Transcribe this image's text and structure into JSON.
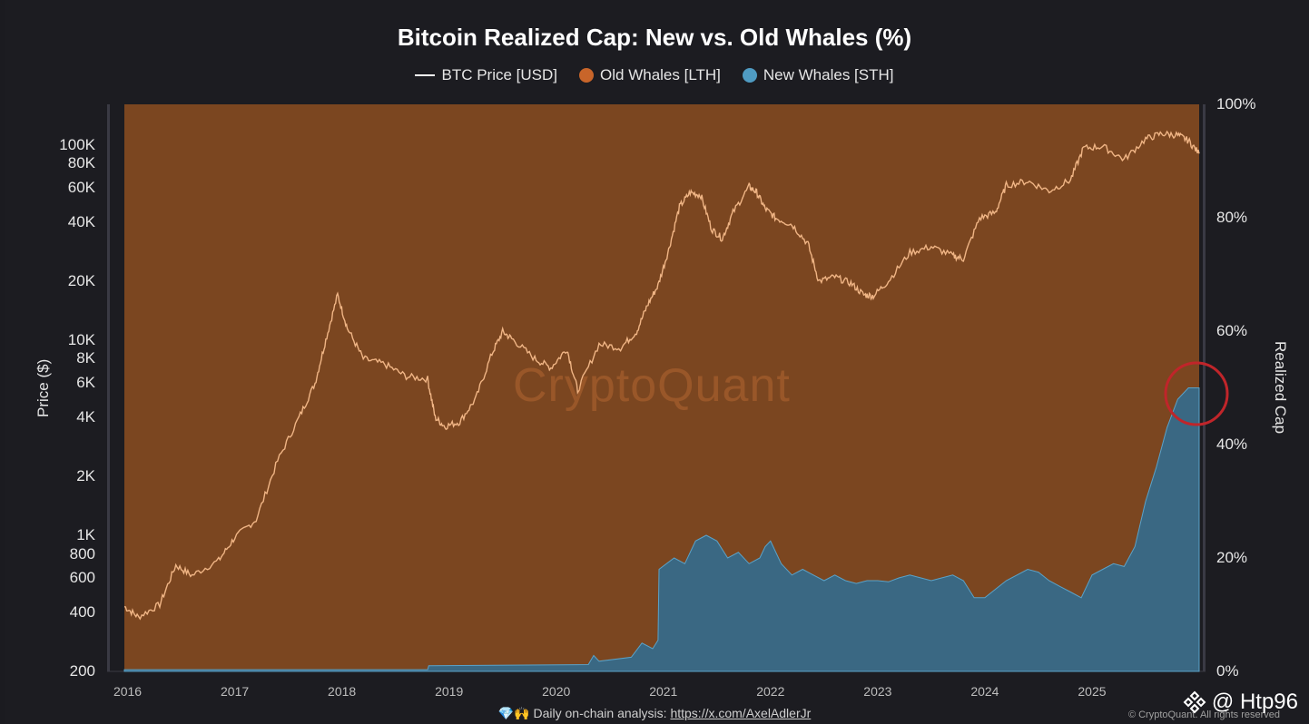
{
  "chart_data": {
    "type": "area",
    "title": "Bitcoin Realized Cap: New vs. Old Whales (%)",
    "legend": [
      {
        "name": "BTC Price [USD]",
        "color": "#ffffff",
        "kind": "line"
      },
      {
        "name": "Old Whales [LTH]",
        "color": "#d2691e",
        "kind": "dot"
      },
      {
        "name": "New Whales [STH]",
        "color": "#4f9bc2",
        "kind": "dot"
      }
    ],
    "ylabel_left": "Price ($)",
    "ylabel_right": "Realized Cap",
    "left_ticks": [
      "100K",
      "80K",
      "60K",
      "40K",
      "20K",
      "10K",
      "8K",
      "6K",
      "4K",
      "2K",
      "1K",
      "800",
      "600",
      "400",
      "200"
    ],
    "left_tick_values": [
      100000,
      80000,
      60000,
      40000,
      20000,
      10000,
      8000,
      6000,
      4000,
      2000,
      1000,
      800,
      600,
      400,
      200
    ],
    "right_ticks": [
      "100%",
      "80%",
      "60%",
      "40%",
      "20%",
      "0%"
    ],
    "right_tick_values": [
      100,
      80,
      60,
      40,
      20,
      0
    ],
    "x_ticks": [
      "2016",
      "2017",
      "2018",
      "2019",
      "2020",
      "2021",
      "2022",
      "2023",
      "2024",
      "2025"
    ],
    "x_tick_values": [
      2016,
      2017,
      2018,
      2019,
      2020,
      2021,
      2022,
      2023,
      2024,
      2025
    ],
    "xlim": [
      2015.97,
      2026.0
    ],
    "ylim_price_log": [
      200,
      200000
    ],
    "ylim_pct": [
      0,
      100
    ],
    "series": [
      {
        "name": "BTC Price [USD]",
        "x": [
          2015.97,
          2016.1,
          2016.3,
          2016.45,
          2016.6,
          2016.85,
          2017.0,
          2017.2,
          2017.4,
          2017.6,
          2017.75,
          2017.85,
          2017.96,
          2018.05,
          2018.2,
          2018.4,
          2018.6,
          2018.8,
          2018.87,
          2018.96,
          2019.1,
          2019.25,
          2019.4,
          2019.5,
          2019.6,
          2019.8,
          2019.95,
          2020.1,
          2020.2,
          2020.4,
          2020.6,
          2020.75,
          2020.85,
          2020.95,
          2021.05,
          2021.15,
          2021.25,
          2021.35,
          2021.45,
          2021.55,
          2021.65,
          2021.8,
          2021.87,
          2021.95,
          2022.05,
          2022.2,
          2022.35,
          2022.45,
          2022.6,
          2022.75,
          2022.87,
          2022.96,
          2023.1,
          2023.3,
          2023.5,
          2023.7,
          2023.8,
          2023.95,
          2024.1,
          2024.2,
          2024.4,
          2024.6,
          2024.8,
          2024.92,
          2025.1,
          2025.3,
          2025.5,
          2025.65,
          2025.8,
          2025.9,
          2026.0
        ],
        "values": [
          430,
          380,
          440,
          700,
          620,
          740,
          970,
          1200,
          2400,
          4000,
          6000,
          10000,
          17000,
          11500,
          8000,
          7500,
          6500,
          6300,
          4000,
          3600,
          3800,
          5000,
          8500,
          11000,
          10000,
          8000,
          7200,
          9000,
          5500,
          9500,
          9100,
          11000,
          15000,
          19000,
          29000,
          48000,
          57000,
          55000,
          37000,
          33000,
          45000,
          61000,
          57000,
          47000,
          42000,
          39000,
          31000,
          20000,
          21000,
          19500,
          17000,
          16800,
          20000,
          28000,
          30000,
          27000,
          26000,
          42000,
          45000,
          62000,
          65000,
          58000,
          66000,
          96000,
          98000,
          84000,
          107000,
          114000,
          112000,
          105000,
          90000
        ]
      },
      {
        "name": "New Whales [STH]",
        "unit": "%",
        "x": [
          2015.97,
          2018.8,
          2018.81,
          2020.3,
          2020.35,
          2020.4,
          2020.7,
          2020.8,
          2020.9,
          2020.95,
          2020.96,
          2021.1,
          2021.2,
          2021.3,
          2021.4,
          2021.5,
          2021.6,
          2021.7,
          2021.8,
          2021.9,
          2021.95,
          2022.0,
          2022.1,
          2022.2,
          2022.3,
          2022.4,
          2022.5,
          2022.6,
          2022.7,
          2022.8,
          2022.9,
          2023.0,
          2023.1,
          2023.2,
          2023.3,
          2023.4,
          2023.5,
          2023.6,
          2023.7,
          2023.8,
          2023.9,
          2024.0,
          2024.1,
          2024.2,
          2024.3,
          2024.4,
          2024.5,
          2024.6,
          2024.7,
          2024.8,
          2024.9,
          2025.0,
          2025.1,
          2025.2,
          2025.3,
          2025.4,
          2025.5,
          2025.6,
          2025.7,
          2025.8,
          2025.9,
          2026.0
        ],
        "values": [
          0.3,
          0.3,
          1.0,
          1.2,
          2.8,
          1.8,
          2.5,
          5.0,
          4.0,
          5.5,
          18,
          20,
          19,
          23,
          24,
          23,
          20,
          21,
          19,
          20,
          22,
          23,
          19,
          17,
          18,
          17,
          16,
          17,
          16,
          15.5,
          16,
          16,
          15.8,
          16.5,
          17,
          16.5,
          16,
          16.5,
          17,
          16,
          13,
          13,
          14.5,
          16,
          17,
          18,
          17.5,
          16,
          15,
          14,
          13,
          17,
          18,
          19,
          18.5,
          22,
          30,
          36,
          43,
          48,
          50,
          50
        ]
      }
    ],
    "watermark": "CryptoQuant"
  },
  "footer": {
    "emoji": "💎🙌",
    "text": "Daily on-chain analysis:",
    "link": "https://x.com/AxelAdlerJr",
    "copyright": "© CryptoQuant. All rights reserved"
  },
  "overlay": {
    "handle": "@ Htp96"
  },
  "colors": {
    "lth_fill": "#7b4620",
    "sth_fill": "#3a6883",
    "sth_edge": "#5aa2c8",
    "price_line": "#f0b585",
    "highlight_circle": "#c0252a"
  }
}
